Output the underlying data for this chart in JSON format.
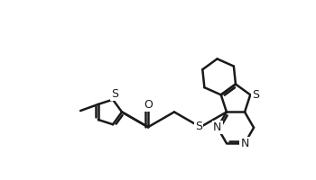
{
  "bg_color": "#ffffff",
  "line_color": "#1a1a1a",
  "lw": 1.8,
  "dbo": 0.055,
  "fs": 9,
  "figsize": [
    3.5,
    2.0
  ],
  "dpi": 100,
  "xlim": [
    0.0,
    7.5
  ],
  "ylim": [
    0.3,
    4.5
  ]
}
